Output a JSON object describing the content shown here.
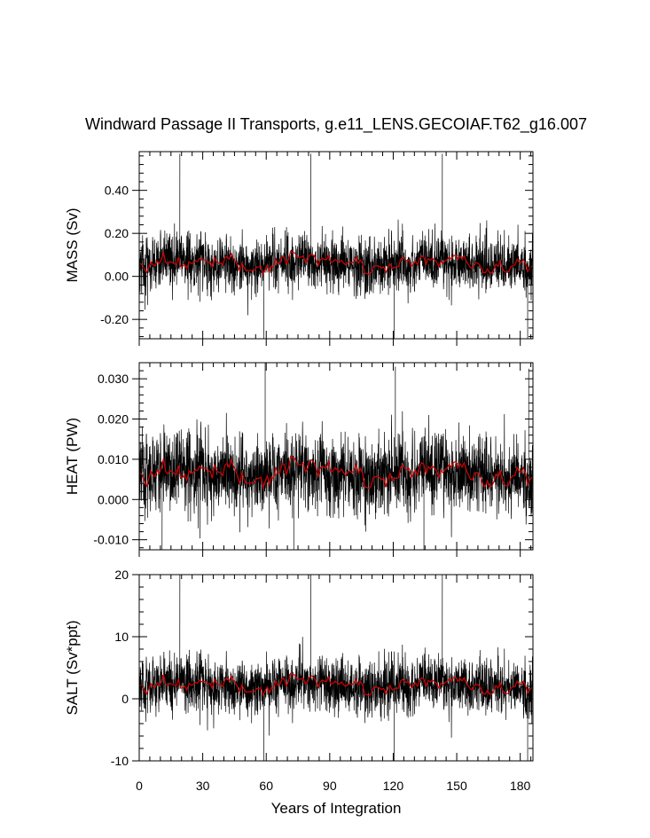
{
  "figure": {
    "title": "Windward Passage II Transports, g.e11_LENS.GECOIAF.T62_g16.007",
    "xlabel": "Years of Integration"
  },
  "colors": {
    "raw_series": "#000000",
    "smoothed_series": "#d40000",
    "axes": "#000000",
    "background": "#ffffff"
  },
  "chart_data": [
    {
      "type": "line",
      "panel": "mass",
      "ylabel": "MASS (Sv)",
      "xlim": [
        0,
        186
      ],
      "ylim": [
        -0.29,
        0.58
      ],
      "x_ticks": [
        0,
        30,
        60,
        90,
        120,
        150,
        180
      ],
      "x_tick_labels": [
        "0",
        "30",
        "60",
        "90",
        "120",
        "150",
        "180"
      ],
      "y_ticks": [
        -0.2,
        0.0,
        0.2,
        0.4
      ],
      "y_tick_labels": [
        "-0.20",
        "0.00",
        "0.20",
        "0.40"
      ],
      "series": [
        {
          "style": "monthly",
          "mean": 0.06,
          "std": 0.075,
          "spikes": [
            [
              19.2,
              0.57
            ],
            [
              81.0,
              0.57
            ],
            [
              143.2,
              0.57
            ],
            [
              58.8,
              -0.29
            ],
            [
              120.5,
              -0.29
            ],
            [
              183.5,
              -0.29
            ]
          ]
        },
        {
          "style": "annual-mean",
          "mean": 0.06,
          "range": [
            0.0,
            0.12
          ]
        }
      ]
    },
    {
      "type": "line",
      "panel": "heat",
      "ylabel": "HEAT (PW)",
      "xlim": [
        0,
        186
      ],
      "ylim": [
        -0.0125,
        0.034
      ],
      "x_ticks": [
        0,
        30,
        60,
        90,
        120,
        150,
        180
      ],
      "x_tick_labels": [
        "0",
        "30",
        "60",
        "90",
        "120",
        "150",
        "180"
      ],
      "y_ticks": [
        -0.01,
        0.0,
        0.01,
        0.02,
        0.03
      ],
      "y_tick_labels": [
        "-0.010",
        "0.000",
        "0.010",
        "0.020",
        "0.030"
      ],
      "series": [
        {
          "style": "monthly",
          "mean": 0.0065,
          "std": 0.0055,
          "spikes": [
            [
              59.5,
              0.034
            ],
            [
              121.0,
              0.033
            ],
            [
              184.0,
              0.0325
            ],
            [
              10.8,
              -0.0125
            ],
            [
              73.0,
              -0.0125
            ],
            [
              134.5,
              -0.0125
            ]
          ]
        },
        {
          "style": "annual-mean",
          "mean": 0.0065,
          "range": [
            0.002,
            0.011
          ]
        }
      ]
    },
    {
      "type": "line",
      "panel": "salt",
      "ylabel": "SALT (Sv*ppt)",
      "xlim": [
        0,
        186
      ],
      "ylim": [
        -10,
        20
      ],
      "x_ticks": [
        0,
        30,
        60,
        90,
        120,
        150,
        180
      ],
      "x_tick_labels": [
        "0",
        "30",
        "60",
        "90",
        "120",
        "150",
        "180"
      ],
      "y_ticks": [
        -10,
        0,
        10,
        20
      ],
      "y_tick_labels": [
        "-10",
        "0",
        "10",
        "20"
      ],
      "series": [
        {
          "style": "monthly",
          "mean": 2.2,
          "std": 2.6,
          "spikes": [
            [
              19.2,
              20
            ],
            [
              81.0,
              20
            ],
            [
              143.2,
              20
            ],
            [
              58.8,
              -10
            ],
            [
              120.5,
              -10
            ],
            [
              183.5,
              -10
            ]
          ]
        },
        {
          "style": "annual-mean",
          "mean": 2.2,
          "range": [
            0.2,
            4.2
          ]
        }
      ]
    }
  ]
}
